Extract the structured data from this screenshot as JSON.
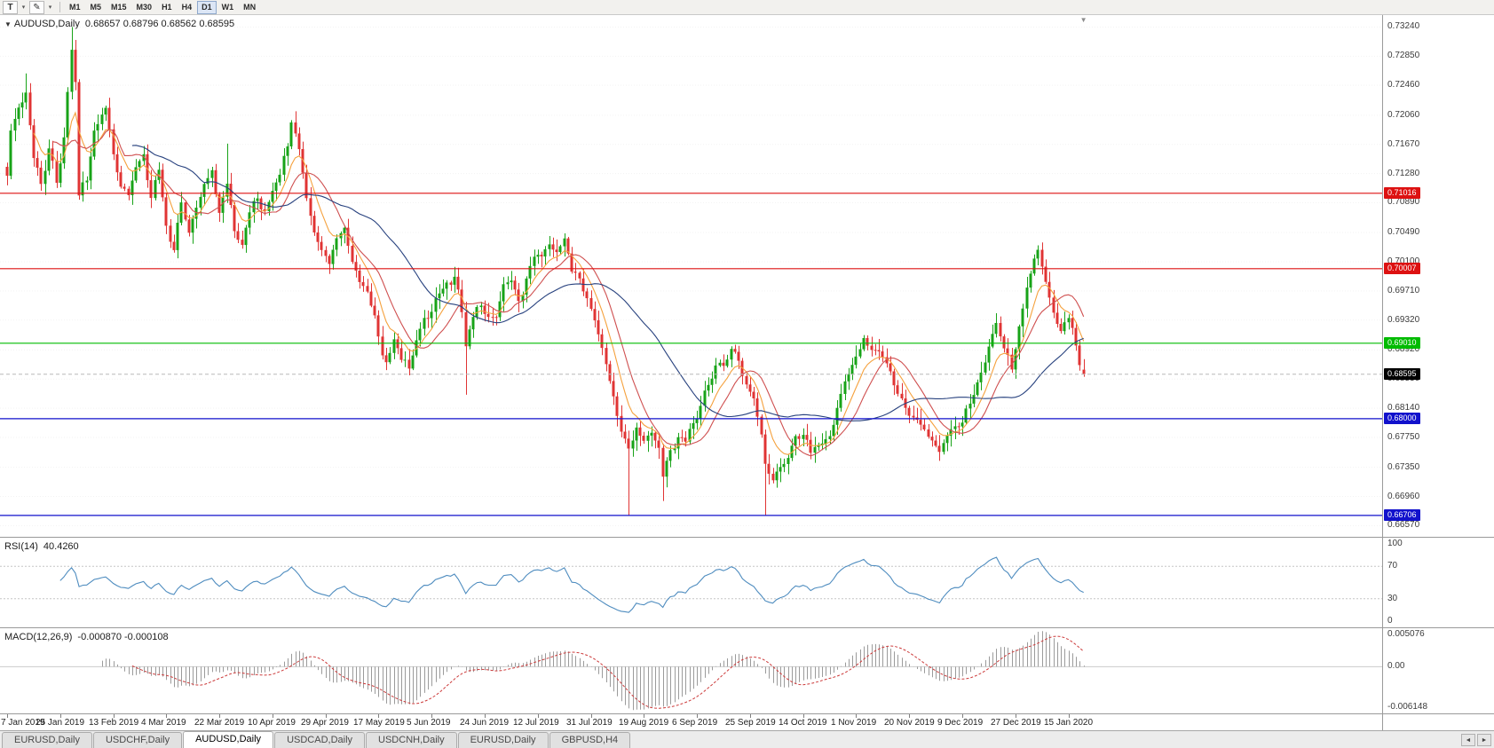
{
  "toolbar": {
    "template_button_label": "T",
    "draw_icon": "✎",
    "caret_icon": "▾",
    "timeframes": [
      {
        "label": "M1",
        "active": false
      },
      {
        "label": "M5",
        "active": false
      },
      {
        "label": "M15",
        "active": false
      },
      {
        "label": "M30",
        "active": false
      },
      {
        "label": "H1",
        "active": false
      },
      {
        "label": "H4",
        "active": false
      },
      {
        "label": "D1",
        "active": true
      },
      {
        "label": "W1",
        "active": false
      },
      {
        "label": "MN",
        "active": false
      }
    ]
  },
  "chart": {
    "collapse_icon": "▼",
    "symbol_timeframe": "AUDUSD,Daily",
    "ohlc": "0.68657 0.68796 0.68562 0.68595",
    "shift_marker_icon": "▼"
  },
  "tabbar": {
    "scroll_left_icon": "◄",
    "scroll_right_icon": "►",
    "tabs": [
      {
        "label": "EURUSD,Daily",
        "active": false
      },
      {
        "label": "USDCHF,Daily",
        "active": false
      },
      {
        "label": "AUDUSD,Daily",
        "active": true
      },
      {
        "label": "USDCAD,Daily",
        "active": false
      },
      {
        "label": "USDCNH,Daily",
        "active": false
      },
      {
        "label": "EURUSD,Daily",
        "active": false
      },
      {
        "label": "GBPUSD,H4",
        "active": false
      }
    ]
  },
  "chart_data": {
    "type": "candlestick",
    "symbol": "AUDUSD",
    "timeframe": "Daily",
    "days": 285,
    "last_candle": [
      0.68657,
      0.68796,
      0.68562,
      0.68595
    ],
    "current_price": {
      "value": 0.68595,
      "label": "0.68595",
      "badge_color": "#000000"
    },
    "y_axis": {
      "max": 0.734,
      "min": 0.6642,
      "labels": [
        "0.73240",
        "0.72850",
        "0.72460",
        "0.72060",
        "0.71670",
        "0.71280",
        "0.70890",
        "0.70490",
        "0.70100",
        "0.69710",
        "0.69320",
        "0.68920",
        "0.68530",
        "0.68140",
        "0.67750",
        "0.67350",
        "0.66960",
        "0.66570"
      ]
    },
    "x_axis": {
      "labels": [
        {
          "text": "7 Jan 2019",
          "day": 0
        },
        {
          "text": "25 Jan 2019",
          "day": 14
        },
        {
          "text": "13 Feb 2019",
          "day": 28
        },
        {
          "text": "4 Mar 2019",
          "day": 42
        },
        {
          "text": "22 Mar 2019",
          "day": 56
        },
        {
          "text": "10 Apr 2019",
          "day": 70
        },
        {
          "text": "29 Apr 2019",
          "day": 84
        },
        {
          "text": "17 May 2019",
          "day": 98
        },
        {
          "text": "5 Jun 2019",
          "day": 112
        },
        {
          "text": "24 Jun 2019",
          "day": 126
        },
        {
          "text": "12 Jul 2019",
          "day": 140
        },
        {
          "text": "31 Jul 2019",
          "day": 154
        },
        {
          "text": "19 Aug 2019",
          "day": 168
        },
        {
          "text": "6 Sep 2019",
          "day": 182
        },
        {
          "text": "25 Sep 2019",
          "day": 196
        },
        {
          "text": "14 Oct 2019",
          "day": 210
        },
        {
          "text": "1 Nov 2019",
          "day": 224
        },
        {
          "text": "20 Nov 2019",
          "day": 238
        },
        {
          "text": "9 Dec 2019",
          "day": 252
        },
        {
          "text": "27 Dec 2019",
          "day": 266
        },
        {
          "text": "15 Jan 2020",
          "day": 280
        }
      ]
    },
    "hlines": [
      {
        "price": 0.71016,
        "label": "0.71016",
        "color": "#dd1111"
      },
      {
        "price": 0.70007,
        "label": "0.70007",
        "color": "#dd1111"
      },
      {
        "price": 0.6901,
        "label": "0.69010",
        "color": "#00bb00"
      },
      {
        "price": 0.68,
        "label": "0.68000",
        "color": "#1111cc"
      },
      {
        "price": 0.66706,
        "label": "0.66706",
        "color": "#1111cc"
      }
    ],
    "colors": {
      "bull": "#18a318",
      "bear": "#e03434",
      "grid": "#f3f3f3",
      "background": "#ffffff"
    },
    "moving_averages": [
      {
        "name": "fast-ma",
        "period": 8,
        "type": "ema",
        "color": "#f5a13d"
      },
      {
        "name": "medium-ma",
        "period": 13,
        "type": "sma",
        "color": "#cf4f4f"
      },
      {
        "name": "slow-ma",
        "period": 34,
        "type": "sma",
        "color": "#27417e"
      }
    ],
    "noise": {
      "seed": 42,
      "amp": 0.0012,
      "wick": 0.0013
    },
    "waypoints": [
      [
        0,
        0.7125
      ],
      [
        1,
        0.7185
      ],
      [
        3,
        0.721
      ],
      [
        5,
        0.724
      ],
      [
        7,
        0.715
      ],
      [
        9,
        0.711
      ],
      [
        11,
        0.716
      ],
      [
        13,
        0.7115
      ],
      [
        15,
        0.718
      ],
      [
        17,
        0.729
      ],
      [
        18,
        0.7255
      ],
      [
        19,
        0.7105
      ],
      [
        21,
        0.712
      ],
      [
        23,
        0.719
      ],
      [
        25,
        0.7215
      ],
      [
        26,
        0.7225
      ],
      [
        28,
        0.715
      ],
      [
        30,
        0.712
      ],
      [
        32,
        0.7095
      ],
      [
        34,
        0.7135
      ],
      [
        36,
        0.716
      ],
      [
        38,
        0.71
      ],
      [
        40,
        0.7135
      ],
      [
        42,
        0.706
      ],
      [
        44,
        0.7025
      ],
      [
        46,
        0.7085
      ],
      [
        48,
        0.7055
      ],
      [
        50,
        0.709
      ],
      [
        52,
        0.711
      ],
      [
        54,
        0.7125
      ],
      [
        56,
        0.7075
      ],
      [
        58,
        0.711
      ],
      [
        60,
        0.706
      ],
      [
        62,
        0.704
      ],
      [
        64,
        0.7075
      ],
      [
        66,
        0.7095
      ],
      [
        68,
        0.707
      ],
      [
        70,
        0.7105
      ],
      [
        72,
        0.713
      ],
      [
        74,
        0.7165
      ],
      [
        75,
        0.7195
      ],
      [
        77,
        0.7155
      ],
      [
        79,
        0.7095
      ],
      [
        81,
        0.705
      ],
      [
        83,
        0.7025
      ],
      [
        85,
        0.701
      ],
      [
        87,
        0.7035
      ],
      [
        89,
        0.7045
      ],
      [
        91,
        0.701
      ],
      [
        93,
        0.699
      ],
      [
        95,
        0.697
      ],
      [
        97,
        0.693
      ],
      [
        99,
        0.689
      ],
      [
        100,
        0.6872
      ],
      [
        102,
        0.6905
      ],
      [
        104,
        0.688
      ],
      [
        106,
        0.6868
      ],
      [
        108,
        0.691
      ],
      [
        110,
        0.6935
      ],
      [
        112,
        0.6945
      ],
      [
        114,
        0.6965
      ],
      [
        116,
        0.698
      ],
      [
        118,
        0.699
      ],
      [
        120,
        0.695
      ],
      [
        121,
        0.69
      ],
      [
        123,
        0.693
      ],
      [
        125,
        0.695
      ],
      [
        127,
        0.6935
      ],
      [
        129,
        0.6945
      ],
      [
        131,
        0.6975
      ],
      [
        133,
        0.699
      ],
      [
        135,
        0.6965
      ],
      [
        137,
        0.6985
      ],
      [
        139,
        0.701
      ],
      [
        141,
        0.7025
      ],
      [
        143,
        0.7035
      ],
      [
        145,
        0.7025
      ],
      [
        147,
        0.704
      ],
      [
        149,
        0.7
      ],
      [
        151,
        0.6985
      ],
      [
        153,
        0.696
      ],
      [
        155,
        0.693
      ],
      [
        157,
        0.69
      ],
      [
        159,
        0.6855
      ],
      [
        161,
        0.6805
      ],
      [
        163,
        0.6775
      ],
      [
        164,
        0.676
      ],
      [
        166,
        0.6795
      ],
      [
        168,
        0.6775
      ],
      [
        170,
        0.6785
      ],
      [
        172,
        0.676
      ],
      [
        173,
        0.6715
      ],
      [
        175,
        0.6755
      ],
      [
        177,
        0.6775
      ],
      [
        179,
        0.6765
      ],
      [
        181,
        0.679
      ],
      [
        183,
        0.682
      ],
      [
        185,
        0.6845
      ],
      [
        187,
        0.6872
      ],
      [
        189,
        0.6865
      ],
      [
        191,
        0.6885
      ],
      [
        193,
        0.688
      ],
      [
        195,
        0.6855
      ],
      [
        197,
        0.6825
      ],
      [
        199,
        0.677
      ],
      [
        200,
        0.673
      ],
      [
        202,
        0.6712
      ],
      [
        204,
        0.673
      ],
      [
        206,
        0.675
      ],
      [
        208,
        0.677
      ],
      [
        210,
        0.6775
      ],
      [
        212,
        0.6755
      ],
      [
        214,
        0.6765
      ],
      [
        216,
        0.678
      ],
      [
        218,
        0.6795
      ],
      [
        220,
        0.6825
      ],
      [
        222,
        0.6855
      ],
      [
        224,
        0.6885
      ],
      [
        226,
        0.6915
      ],
      [
        228,
        0.69
      ],
      [
        230,
        0.689
      ],
      [
        232,
        0.6868
      ],
      [
        234,
        0.6845
      ],
      [
        236,
        0.6825
      ],
      [
        238,
        0.6805
      ],
      [
        240,
        0.68
      ],
      [
        242,
        0.679
      ],
      [
        244,
        0.6775
      ],
      [
        246,
        0.6758
      ],
      [
        248,
        0.6775
      ],
      [
        250,
        0.6795
      ],
      [
        252,
        0.6805
      ],
      [
        254,
        0.682
      ],
      [
        256,
        0.6845
      ],
      [
        258,
        0.688
      ],
      [
        260,
        0.6915
      ],
      [
        261,
        0.6935
      ],
      [
        263,
        0.6895
      ],
      [
        265,
        0.687
      ],
      [
        267,
        0.6915
      ],
      [
        269,
        0.697
      ],
      [
        271,
        0.701
      ],
      [
        272,
        0.7022
      ],
      [
        274,
        0.6992
      ],
      [
        276,
        0.6952
      ],
      [
        278,
        0.6918
      ],
      [
        280,
        0.6932
      ],
      [
        282,
        0.6898
      ],
      [
        284,
        0.68595
      ]
    ],
    "wick_overrides": {
      "5": {
        "high": 0.7262
      },
      "17": {
        "high": 0.7324
      },
      "58": {
        "high": 0.7168
      },
      "100": {
        "low": 0.6865
      },
      "106": {
        "low": 0.6858
      },
      "121": {
        "low": 0.6832
      },
      "147": {
        "high": 0.7048
      },
      "164": {
        "low": 0.66706
      },
      "173": {
        "low": 0.669
      },
      "200": {
        "low": 0.667
      },
      "272": {
        "high": 0.7032
      }
    },
    "rsi": {
      "label": "RSI(14)",
      "value": "40.4260",
      "period": 14,
      "color": "#4e8cbf",
      "levels": [
        70,
        30
      ],
      "axis_labels": [
        "100",
        "70",
        "30",
        "0"
      ]
    },
    "macd": {
      "label": "MACD(12,26,9)",
      "values": "-0.000870 -0.000108",
      "fast": 12,
      "slow": 26,
      "signal": 9,
      "max": 0.005076,
      "min": -0.006148,
      "axis_labels": [
        "0.005076",
        "0.00",
        "-0.006148"
      ],
      "bar_color": "#9b9b9b",
      "signal_color": "#cc3a3a"
    }
  }
}
